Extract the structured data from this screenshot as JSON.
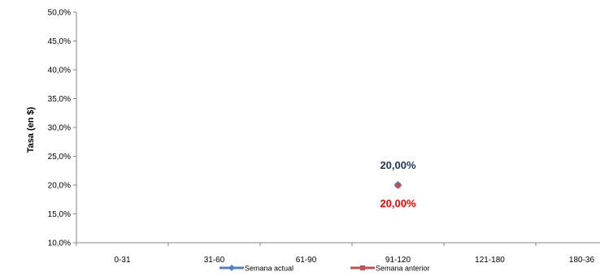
{
  "chart_data": {
    "type": "line",
    "title": "",
    "xlabel": "",
    "ylabel": "Tasa (en $)",
    "categories": [
      "0-31",
      "31-60",
      "61-90",
      "91-120",
      "121-180",
      "180-36"
    ],
    "ylim": [
      0.1,
      0.5
    ],
    "yticks": [
      "10,0%",
      "15,0%",
      "20,0%",
      "25,0%",
      "30,0%",
      "35,0%",
      "40,0%",
      "45,0%",
      "50,0%"
    ],
    "grid": false,
    "legend_position": "bottom",
    "series": [
      {
        "name": "Semana actual",
        "color": "#4f81bd",
        "marker": "diamond",
        "values": [
          null,
          null,
          null,
          0.2,
          null,
          null
        ],
        "data_labels": [
          "",
          "",
          "",
          "20,00%",
          "",
          ""
        ],
        "label_color": "#1f3864",
        "label_position": "above"
      },
      {
        "name": "Semana anterior",
        "color": "#c0504d",
        "marker": "square",
        "values": [
          null,
          null,
          null,
          0.2,
          null,
          null
        ],
        "data_labels": [
          "",
          "",
          "",
          "20,00%",
          "",
          ""
        ],
        "label_color": "#ff0000",
        "label_position": "below"
      }
    ]
  }
}
